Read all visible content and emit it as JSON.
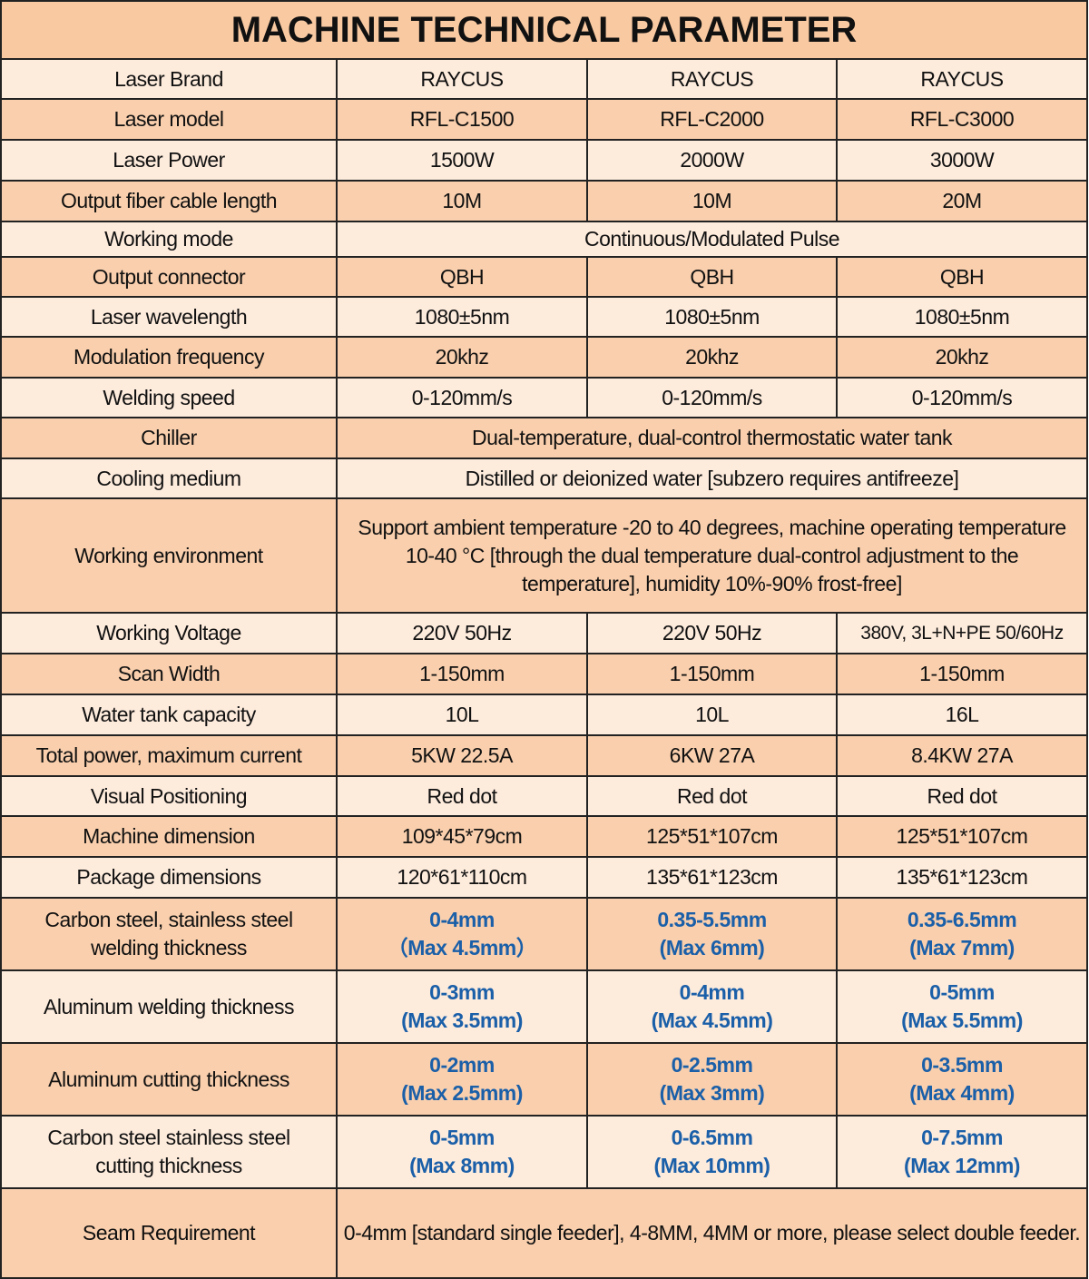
{
  "title": "MACHINE TECHNICAL PARAMETER",
  "colors": {
    "header_bg": "#f9c9a1",
    "row_peach": "#f9cfad",
    "row_light": "#fdebdc",
    "highlight_text": "#1a5fa8"
  },
  "rows": [
    {
      "label": "Laser Brand",
      "values": [
        "RAYCUS",
        "RAYCUS",
        "RAYCUS"
      ]
    },
    {
      "label": "Laser model",
      "values": [
        "RFL-C1500",
        "RFL-C2000",
        "RFL-C3000"
      ]
    },
    {
      "label": "Laser Power",
      "values": [
        "1500W",
        "2000W",
        "3000W"
      ]
    },
    {
      "label": "Output fiber cable length",
      "values": [
        "10M",
        "10M",
        "20M"
      ]
    },
    {
      "label": "Working mode",
      "merged": "Continuous/Modulated Pulse"
    },
    {
      "label": "Output connector",
      "values": [
        "QBH",
        "QBH",
        "QBH"
      ]
    },
    {
      "label": "Laser wavelength",
      "values": [
        "1080±5nm",
        "1080±5nm",
        "1080±5nm"
      ]
    },
    {
      "label": "Modulation frequency",
      "values": [
        "20khz",
        "20khz",
        "20khz"
      ]
    },
    {
      "label": "Welding speed",
      "values": [
        "0-120mm/s",
        "0-120mm/s",
        "0-120mm/s"
      ]
    },
    {
      "label": "Chiller",
      "merged": "Dual-temperature, dual-control thermostatic water tank"
    },
    {
      "label": "Cooling medium",
      "merged": "Distilled or deionized water [subzero requires antifreeze]"
    },
    {
      "label": "Working environment",
      "merged": "Support ambient temperature -20 to 40 degrees, machine operating temperature 10-40 °C [through the dual temperature dual-control adjustment to the temperature], humidity 10%-90% frost-free]"
    },
    {
      "label": "Working Voltage",
      "values": [
        "220V 50Hz",
        "220V 50Hz",
        "380V, 3L+N+PE 50/60Hz"
      ]
    },
    {
      "label": "Scan Width",
      "values": [
        "1-150mm",
        "1-150mm",
        "1-150mm"
      ]
    },
    {
      "label": "Water tank capacity",
      "values": [
        "10L",
        "10L",
        "16L"
      ]
    },
    {
      "label": "Total power, maximum current",
      "values": [
        "5KW  22.5A",
        "6KW  27A",
        "8.4KW 27A"
      ]
    },
    {
      "label": "Visual Positioning",
      "values": [
        "Red dot",
        "Red dot",
        "Red dot"
      ]
    },
    {
      "label": "Machine dimension",
      "values": [
        "109*45*79cm",
        "125*51*107cm",
        "125*51*107cm"
      ]
    },
    {
      "label": "Package dimensions",
      "values": [
        "120*61*110cm",
        "135*61*123cm",
        "135*61*123cm"
      ]
    },
    {
      "label": "Carbon steel, stainless steel welding thickness",
      "highlight": true,
      "values": [
        [
          "0-4mm",
          "（Max 4.5mm）"
        ],
        [
          "0.35-5.5mm",
          "(Max 6mm)"
        ],
        [
          "0.35-6.5mm",
          "(Max 7mm)"
        ]
      ]
    },
    {
      "label": "Aluminum welding thickness",
      "highlight": true,
      "values": [
        [
          "0-3mm",
          "(Max 3.5mm)"
        ],
        [
          "0-4mm",
          "(Max 4.5mm)"
        ],
        [
          "0-5mm",
          "(Max 5.5mm)"
        ]
      ]
    },
    {
      "label": "Aluminum cutting thickness",
      "highlight": true,
      "values": [
        [
          "0-2mm",
          "(Max 2.5mm)"
        ],
        [
          "0-2.5mm",
          "(Max 3mm)"
        ],
        [
          "0-3.5mm",
          "(Max 4mm)"
        ]
      ]
    },
    {
      "label": "Carbon steel stainless steel cutting thickness",
      "highlight": true,
      "values": [
        [
          "0-5mm",
          "(Max 8mm)"
        ],
        [
          "0-6.5mm",
          "(Max 10mm)"
        ],
        [
          "0-7.5mm",
          "(Max 12mm)"
        ]
      ]
    },
    {
      "label": "Seam Requirement",
      "merged": "0-4mm [standard single feeder], 4-8MM, 4MM or more, please select double feeder."
    }
  ]
}
